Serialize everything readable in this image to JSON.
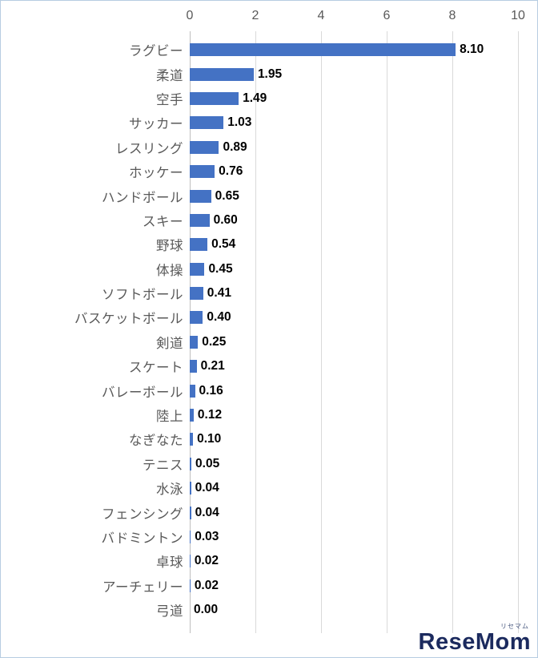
{
  "chart_data": {
    "type": "bar",
    "orientation": "horizontal",
    "title": "",
    "xlabel": "",
    "ylabel": "",
    "xlim": [
      0,
      10
    ],
    "xticks": [
      0,
      2,
      4,
      6,
      8,
      10
    ],
    "grid": true,
    "categories": [
      "ラグビー",
      "柔道",
      "空手",
      "サッカー",
      "レスリング",
      "ホッケー",
      "ハンドボール",
      "スキー",
      "野球",
      "体操",
      "ソフトボール",
      "バスケットボール",
      "剣道",
      "スケート",
      "バレーボール",
      "陸上",
      "なぎなた",
      "テニス",
      "水泳",
      "フェンシング",
      "バドミントン",
      "卓球",
      "アーチェリー",
      "弓道"
    ],
    "values": [
      8.1,
      1.95,
      1.49,
      1.03,
      0.89,
      0.76,
      0.65,
      0.6,
      0.54,
      0.45,
      0.41,
      0.4,
      0.25,
      0.21,
      0.16,
      0.12,
      0.1,
      0.05,
      0.04,
      0.04,
      0.03,
      0.02,
      0.02,
      0.0
    ],
    "colors": {
      "bar": "#4472c4",
      "gridline": "#d9d9d9",
      "zero_axis_line": "#bfbfbf",
      "category_label": "#595959",
      "tick_label": "#595959",
      "value_label": "#000000"
    }
  },
  "logo": {
    "text": "ReseMom",
    "subtext": "リセマム"
  }
}
